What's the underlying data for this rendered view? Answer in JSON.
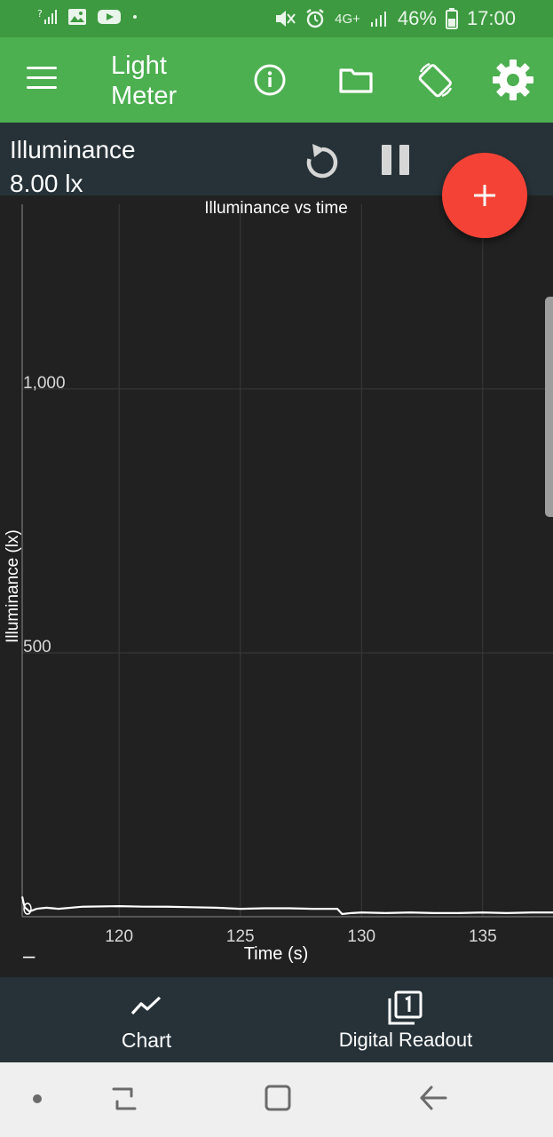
{
  "status_bar": {
    "battery": "46%",
    "time": "17:00",
    "network": "4G+"
  },
  "app_bar": {
    "title": "Light Meter"
  },
  "readout": {
    "label": "Illuminance",
    "value": "8.00 lx"
  },
  "fab": {
    "label": "+"
  },
  "chart_data": {
    "type": "line",
    "title": "Illuminance vs time",
    "xlabel": "Time (s)",
    "ylabel": "Illuminance (lx)",
    "xlim": [
      116.0,
      137.9
    ],
    "ylim": [
      0,
      1350
    ],
    "x_ticks": [
      120,
      125,
      130,
      135
    ],
    "y_ticks": [
      500,
      1000
    ],
    "y_tick_labels": [
      "500",
      "1,000"
    ],
    "grid": true,
    "legend_mark": "–",
    "series": [
      {
        "x": [
          116.0,
          116.1,
          116.3,
          116.6,
          117.0,
          117.5,
          118.5,
          120,
          121,
          122,
          123,
          124,
          125,
          126,
          127,
          128,
          129.0,
          129.2,
          129.6,
          130,
          131,
          132,
          133,
          134,
          135,
          136,
          137,
          137.9
        ],
        "y": [
          38,
          18,
          10,
          15,
          17,
          15,
          19,
          20,
          19,
          19,
          18,
          17,
          15,
          16,
          16,
          15,
          15,
          5,
          7,
          8,
          7,
          8,
          7,
          7,
          8,
          7,
          8,
          8
        ]
      }
    ]
  },
  "bottom_nav": {
    "items": [
      {
        "label": "Chart",
        "icon": "trend-line-icon"
      },
      {
        "label": "Digital Readout",
        "icon": "digital-readout-icon"
      }
    ]
  },
  "colors": {
    "status_bar": "#3d9a40",
    "app_bar": "#4caf50",
    "panel": "#263238",
    "chart_bg": "#212121",
    "fab": "#f44336",
    "line": "#ffffff"
  }
}
